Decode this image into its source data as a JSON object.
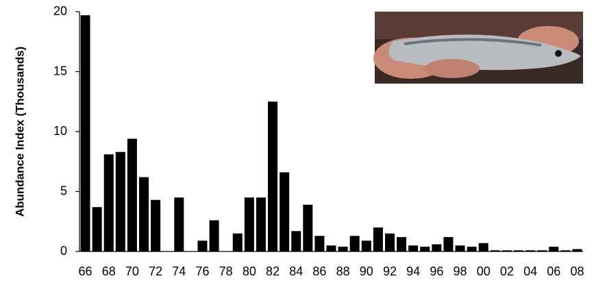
{
  "chart_data": {
    "type": "bar",
    "y_label": "Abundance Index  (Thousands)",
    "categories": [
      "66",
      null,
      "68",
      null,
      "70",
      null,
      "72",
      null,
      "74",
      null,
      "76",
      null,
      "78",
      null,
      "80",
      null,
      "82",
      null,
      "84",
      null,
      "86",
      null,
      "88",
      null,
      "90",
      null,
      "92",
      null,
      "94",
      null,
      "96",
      null,
      "98",
      null,
      "00",
      null,
      "02",
      null,
      "04",
      null,
      "06",
      null,
      "08"
    ],
    "values": [
      19.7,
      3.7,
      8.1,
      8.3,
      9.4,
      6.2,
      4.3,
      0,
      4.5,
      0,
      0.9,
      2.6,
      0,
      1.5,
      4.5,
      4.5,
      12.5,
      6.6,
      1.7,
      3.9,
      1.3,
      0.5,
      0.4,
      1.3,
      0.9,
      2.0,
      1.5,
      1.2,
      0.5,
      0.4,
      0.6,
      1.2,
      0.5,
      0.4,
      0.7,
      0.1,
      0.1,
      0.1,
      0.1,
      0.1,
      0.4,
      0.1,
      0.2
    ],
    "color": "#000000",
    "ylim": [
      0,
      20
    ],
    "yticks": [
      0,
      5,
      10,
      15,
      20
    ],
    "grid": false
  }
}
